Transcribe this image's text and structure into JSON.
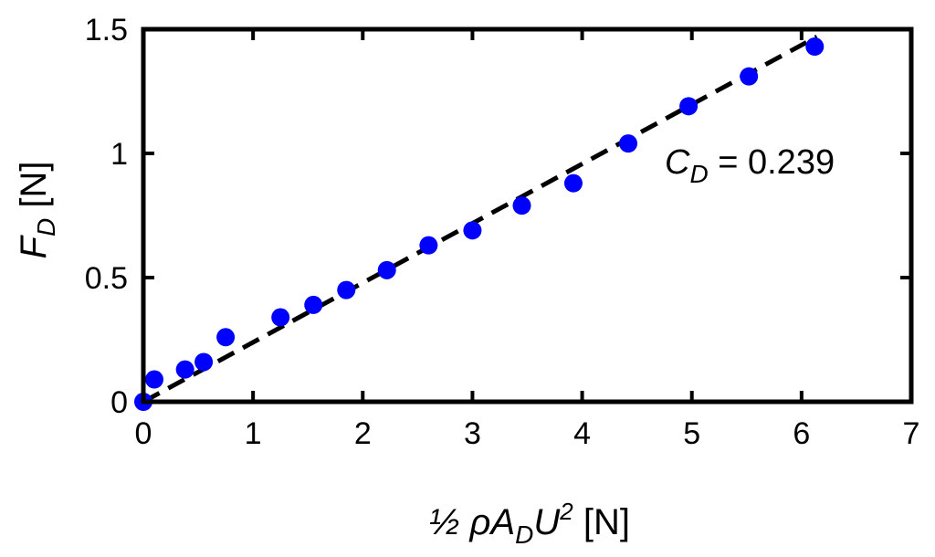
{
  "chart_data": {
    "type": "scatter",
    "title": "",
    "xlabel": {
      "prefix": "½ ",
      "rho": "ρ",
      "a": "A",
      "a_sub": "D",
      "u": "U",
      "u_sup": "2",
      "unit": " [N]"
    },
    "ylabel": {
      "f": "F",
      "f_sub": "D",
      "unit": " [N]"
    },
    "xlim": [
      0,
      7
    ],
    "ylim": [
      0,
      1.5
    ],
    "xticks": [
      0,
      1,
      2,
      3,
      4,
      5,
      6,
      7
    ],
    "xtick_labels": [
      "0",
      "1",
      "2",
      "3",
      "4",
      "5",
      "6",
      "7"
    ],
    "yticks": [
      0,
      0.5,
      1,
      1.5
    ],
    "ytick_labels": [
      "0",
      "0.5",
      "1",
      "1.5"
    ],
    "grid": false,
    "series": [
      {
        "kind": "points",
        "color": "#0000ff",
        "x": [
          0,
          0.1,
          0.38,
          0.55,
          0.75,
          1.25,
          1.55,
          1.85,
          2.22,
          2.6,
          3.0,
          3.45,
          3.92,
          4.42,
          4.97,
          5.52,
          6.12
        ],
        "y": [
          0,
          0.09,
          0.13,
          0.16,
          0.26,
          0.34,
          0.39,
          0.45,
          0.53,
          0.63,
          0.69,
          0.79,
          0.88,
          1.04,
          1.19,
          1.31,
          1.43
        ]
      },
      {
        "kind": "fit-line",
        "style": "dashed",
        "color": "#000000",
        "x": [
          0,
          6.14
        ],
        "y": [
          0,
          1.47
        ]
      }
    ],
    "annotation": {
      "c": "C",
      "c_sub": "D",
      "text": " = 0.239"
    }
  }
}
